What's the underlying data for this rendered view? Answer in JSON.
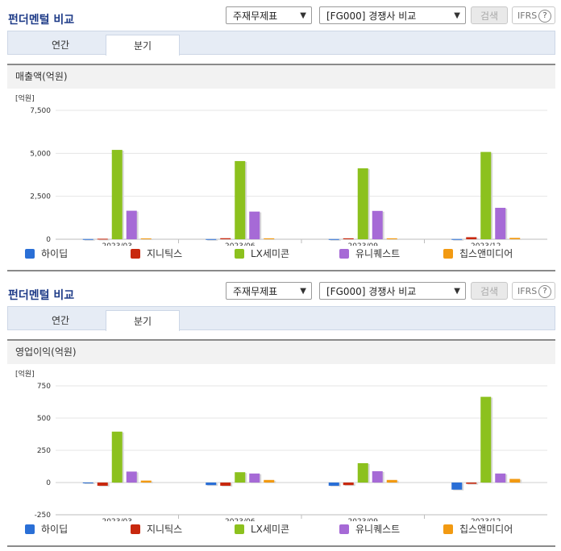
{
  "panels": [
    {
      "header": {
        "title": "펀더멘털 비교",
        "select1": "주재무제표",
        "select2": "[FG000] 경쟁사 비교",
        "search_label": "검색",
        "ifrs_label": "IFRS",
        "help_label": "?"
      },
      "tabs": [
        {
          "label": "연간"
        },
        {
          "label": "분기"
        }
      ],
      "active_tab": 1,
      "chart_title": "매출액(억원)",
      "unit_label": "[억원]",
      "tick_labels": [
        "7,500",
        "5,000",
        "2,500",
        "0"
      ]
    },
    {
      "header": {
        "title": "펀더멘털 비교",
        "select1": "주재무제표",
        "select2": "[FG000] 경쟁사 비교",
        "search_label": "검색",
        "ifrs_label": "IFRS",
        "help_label": "?"
      },
      "tabs": [
        {
          "label": "연간"
        },
        {
          "label": "분기"
        }
      ],
      "active_tab": 1,
      "chart_title": "영업이익(억원)",
      "unit_label": "[억원]",
      "tick_labels": [
        "750",
        "500",
        "250",
        "0",
        "-250"
      ]
    }
  ],
  "chart_data": [
    {
      "type": "bar",
      "title": "매출액(억원)",
      "ylabel": "[억원]",
      "categories": [
        "2023/03",
        "2023/06",
        "2023/09",
        "2023/12"
      ],
      "ylim": [
        0,
        7500
      ],
      "yticks": [
        0,
        2500,
        5000,
        7500
      ],
      "legend": "bottom",
      "grid": true,
      "series": [
        {
          "name": "하이딥",
          "color": "#2a6fd6",
          "values": [
            12,
            10,
            10,
            12
          ]
        },
        {
          "name": "지니틱스",
          "color": "#c8280e",
          "values": [
            30,
            60,
            55,
            120
          ]
        },
        {
          "name": "LX세미콘",
          "color": "#8cc11e",
          "values": [
            5200,
            4550,
            4130,
            5080
          ]
        },
        {
          "name": "유니퀘스트",
          "color": "#a66ad6",
          "values": [
            1660,
            1610,
            1650,
            1830
          ]
        },
        {
          "name": "칩스앤미디어",
          "color": "#f29a12",
          "values": [
            50,
            55,
            55,
            80
          ]
        }
      ]
    },
    {
      "type": "bar",
      "title": "영업이익(억원)",
      "ylabel": "[억원]",
      "categories": [
        "2023/03",
        "2023/06",
        "2023/09",
        "2023/12"
      ],
      "ylim": [
        -250,
        750
      ],
      "yticks": [
        -250,
        0,
        250,
        500,
        750
      ],
      "legend": "bottom",
      "grid": true,
      "series": [
        {
          "name": "하이딥",
          "color": "#2a6fd6",
          "values": [
            -2,
            -20,
            -25,
            -55
          ]
        },
        {
          "name": "지니틱스",
          "color": "#c8280e",
          "values": [
            -25,
            -25,
            -20,
            -10
          ]
        },
        {
          "name": "LX세미콘",
          "color": "#8cc11e",
          "values": [
            395,
            80,
            150,
            665
          ]
        },
        {
          "name": "유니퀘스트",
          "color": "#a66ad6",
          "values": [
            85,
            70,
            88,
            70
          ]
        },
        {
          "name": "칩스앤미디어",
          "color": "#f29a12",
          "values": [
            15,
            20,
            20,
            28
          ]
        }
      ]
    }
  ]
}
